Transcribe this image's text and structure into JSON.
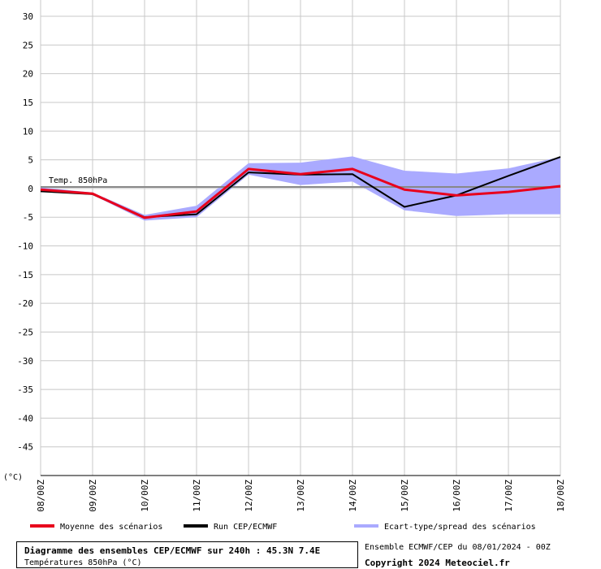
{
  "chart_data": {
    "type": "line",
    "unit_label": "(°C)",
    "series_label": "Temp. 850hPa",
    "categories": [
      "08/00Z",
      "09/00Z",
      "10/00Z",
      "11/00Z",
      "12/00Z",
      "13/00Z",
      "14/00Z",
      "15/00Z",
      "16/00Z",
      "17/00Z",
      "18/00Z"
    ],
    "y_ticks": [
      30,
      25,
      20,
      15,
      10,
      5,
      0,
      -5,
      -10,
      -15,
      -20,
      -25,
      -30,
      -35,
      -40,
      -45
    ],
    "ylim": [
      -50,
      30
    ],
    "grid": true,
    "series": [
      {
        "name": "Run CEP/ECMWF",
        "color": "#000000",
        "values": [
          -0.5,
          -1.0,
          -5.0,
          -4.5,
          2.8,
          2.4,
          2.5,
          -3.2,
          -1.2,
          2.2,
          5.5
        ]
      },
      {
        "name": "Moyenne des scénarios",
        "color": "#e8001c",
        "values": [
          -0.2,
          -0.9,
          -5.1,
          -4.0,
          3.4,
          2.5,
          3.4,
          -0.2,
          -1.2,
          -0.6,
          0.4
        ]
      }
    ],
    "spread": {
      "name": "Ecart-type/spread des scénarios",
      "color": "#aaaaff",
      "upper": [
        0.2,
        -0.7,
        -4.6,
        -3.0,
        4.4,
        4.5,
        5.6,
        3.1,
        2.6,
        3.5,
        5.5
      ],
      "lower": [
        -0.6,
        -1.1,
        -5.6,
        -5.0,
        2.4,
        0.6,
        1.2,
        -3.8,
        -4.8,
        -4.5,
        -4.5
      ]
    }
  },
  "footer": {
    "title_line": "Diagramme des ensembles CEP/ECMWF sur 240h : 45.3N 7.4E",
    "subtitle_line": "Températures 850hPa (°C)",
    "run_info": "Ensemble ECMWF/CEP du 08/01/2024 - 00Z",
    "copyright": "Copyright 2024 Meteociel.fr"
  }
}
